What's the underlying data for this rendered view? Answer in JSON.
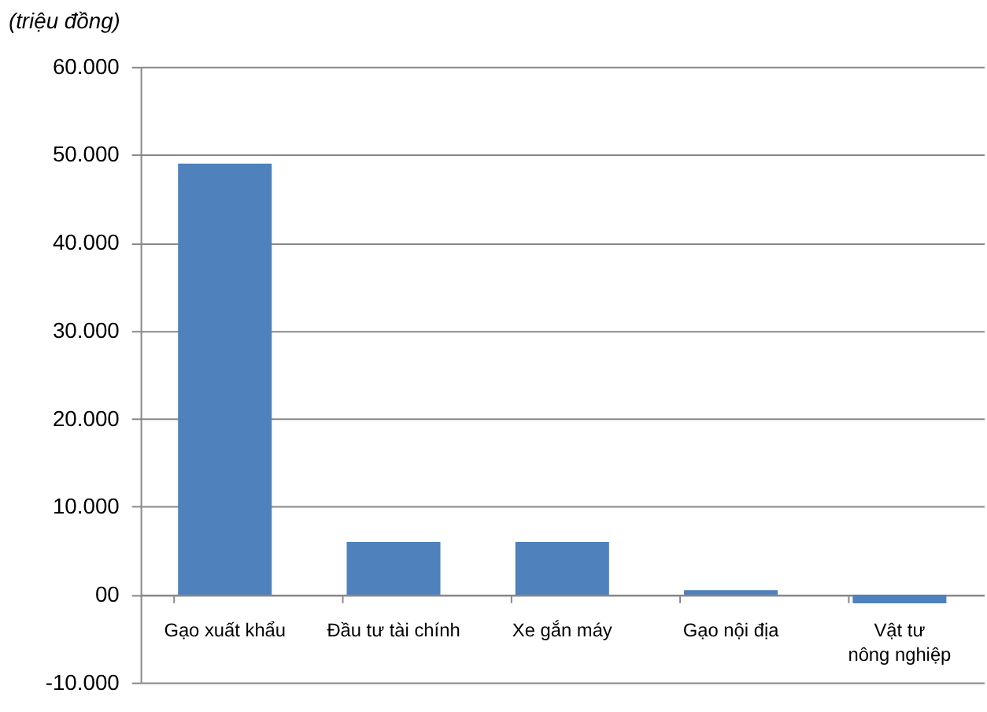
{
  "chart_data": {
    "type": "bar",
    "ylabel": "(triệu đồng)",
    "categories": [
      "Gạo xuất khẩu",
      "Đầu tư tài chính",
      "Xe gắn máy",
      "Gạo nội địa",
      "Vật tư\nnông nghiệp"
    ],
    "values": [
      49000,
      6000,
      6000,
      500,
      -1000
    ],
    "color": "#4f81bd",
    "ylim": [
      -10000,
      60000
    ],
    "yticks": [
      {
        "value": -10000,
        "label": "-10.000"
      },
      {
        "value": 0,
        "label": "00"
      },
      {
        "value": 10000,
        "label": "10.000"
      },
      {
        "value": 20000,
        "label": "20.000"
      },
      {
        "value": 30000,
        "label": "30.000"
      },
      {
        "value": 40000,
        "label": "40.000"
      },
      {
        "value": 50000,
        "label": "50.000"
      },
      {
        "value": 60000,
        "label": "60.000"
      }
    ],
    "grid": "y"
  }
}
